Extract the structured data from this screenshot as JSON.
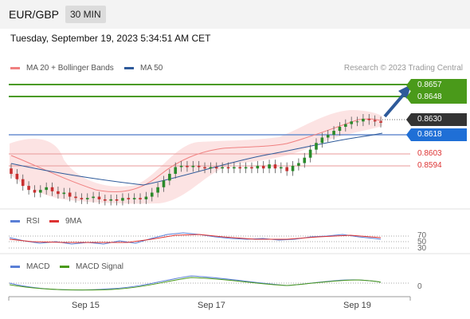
{
  "header": {
    "pair": "EUR/GBP",
    "timeframe": "30 MIN"
  },
  "timestamp": "Tuesday, September 19, 2023 5:34:51 AM CET",
  "legend": {
    "ma20": "MA 20 + Bollinger Bands",
    "ma50": "MA 50",
    "credit": "Research © 2023 Trading Central"
  },
  "rsi_legend": {
    "rsi": "RSI",
    "ma9": "9MA"
  },
  "macd_legend": {
    "macd": "MACD",
    "signal": "MACD Signal"
  },
  "colors": {
    "green": "#4a9a1a",
    "blue": "#1f6fd6",
    "red": "#dd3333",
    "dark": "#333333",
    "ma20": "#f08080",
    "ma50": "#2e5a9a",
    "arrow": "#2e5a9a"
  },
  "levels": {
    "resistance_2": "0.8657",
    "resistance_1": "0.8648",
    "last": "0.8630",
    "pivot": "0.8618",
    "support_1": "0.8603",
    "support_2": "0.8594"
  },
  "rsi_levels": {
    "l70": "70",
    "l50": "50",
    "l30": "30"
  },
  "macd_levels": {
    "zero": "0"
  },
  "xaxis": {
    "labels": [
      "Sep 15",
      "Sep 17",
      "Sep 19"
    ]
  },
  "chart_data": {
    "type": "candlestick",
    "ylim": [
      0.857,
      0.8665
    ],
    "price_close": [
      0.8592,
      0.8588,
      0.8583,
      0.858,
      0.8578,
      0.858,
      0.8582,
      0.8579,
      0.8577,
      0.8578,
      0.8575,
      0.8574,
      0.8573,
      0.8574,
      0.8575,
      0.8573,
      0.8572,
      0.8573,
      0.8572,
      0.8574,
      0.8573,
      0.8574,
      0.8573,
      0.8575,
      0.8578,
      0.8582,
      0.8587,
      0.8592,
      0.8597,
      0.8598,
      0.8597,
      0.8598,
      0.8597,
      0.8596,
      0.8597,
      0.8596,
      0.8597,
      0.8596,
      0.8597,
      0.8596,
      0.8597,
      0.8596,
      0.8598,
      0.8596,
      0.8599,
      0.8596,
      0.8597,
      0.8594,
      0.8598,
      0.86,
      0.8604,
      0.861,
      0.8615,
      0.8619,
      0.8621,
      0.8624,
      0.8627,
      0.8629,
      0.8631,
      0.8631,
      0.8633,
      0.8632,
      0.8631,
      0.863
    ],
    "ma50_start": 0.859,
    "ma50_end": 0.8618,
    "rsi_range": [
      30,
      70
    ],
    "series": [
      {
        "name": "MA 20 + Bollinger Bands"
      },
      {
        "name": "MA 50"
      },
      {
        "name": "RSI"
      },
      {
        "name": "9MA"
      },
      {
        "name": "MACD"
      },
      {
        "name": "MACD Signal"
      }
    ]
  }
}
